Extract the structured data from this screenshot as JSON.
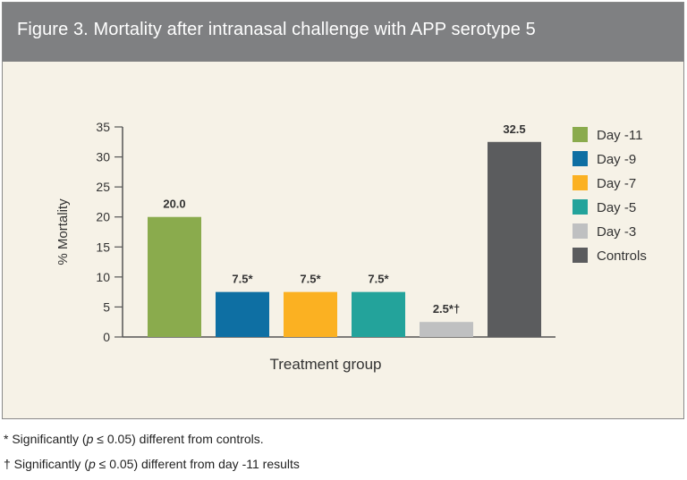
{
  "header": {
    "title": "Figure 3. Mortality after intranasal challenge with APP serotype 5"
  },
  "colors": {
    "header_bg": "#7f8082",
    "panel_bg": "#f6f2e7"
  },
  "chart_data": {
    "type": "bar",
    "title": "Figure 3. Mortality after intranasal challenge with APP serotype 5",
    "xlabel": "Treatment group",
    "ylabel": "% Mortality",
    "ylim": [
      0,
      35
    ],
    "yticks": [
      0,
      5,
      10,
      15,
      20,
      25,
      30,
      35
    ],
    "grid": false,
    "legend_position": "right",
    "categories": [
      "Day -11",
      "Day -9",
      "Day -7",
      "Day -5",
      "Day -3",
      "Controls"
    ],
    "values": [
      20.0,
      7.5,
      7.5,
      7.5,
      2.5,
      32.5
    ],
    "data_labels": [
      "20.0",
      "7.5*",
      "7.5*",
      "7.5*",
      "2.5*†",
      "32.5"
    ],
    "colors": [
      "#8aab4d",
      "#0e6fa3",
      "#fbb122",
      "#23a39b",
      "#bfc0c1",
      "#5b5c5e"
    ]
  },
  "footnotes": {
    "note1": {
      "prefix": "* Significantly (",
      "p": "p",
      "suffix": " ≤ 0.05) different from controls."
    },
    "note2": {
      "prefix": "† Significantly (",
      "p": "p",
      "suffix": " ≤ 0.05) different from day -11 results"
    }
  }
}
